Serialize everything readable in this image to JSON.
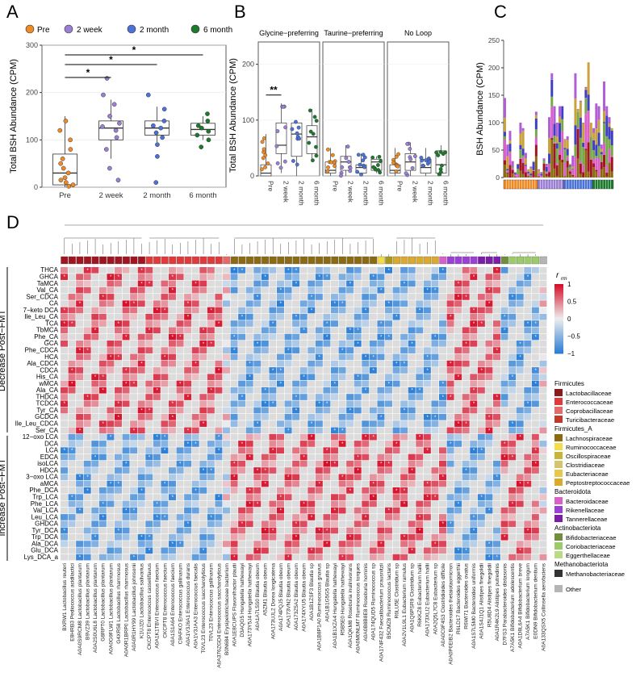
{
  "panel_letters": [
    "A",
    "B",
    "C",
    "D"
  ],
  "colors": {
    "pre": "#f08a24",
    "week2": "#9b7fd4",
    "month2": "#4a72d8",
    "month6": "#1b7a2c",
    "neg": "#2c7fd6",
    "pos": "#d6102a",
    "mid": "#dcdcdc"
  },
  "legend_top": {
    "items": [
      "Pre",
      "2 week",
      "2 month",
      "6 month"
    ]
  },
  "chart_data": [
    {
      "id": "A",
      "type": "box",
      "ylabel": "Total BSH Abundance (CPM)",
      "categories": [
        "Pre",
        "2 week",
        "2 month",
        "6 month"
      ],
      "ylim": [
        0,
        300
      ],
      "yticks": [
        "0",
        "100",
        "200",
        "300"
      ],
      "boxes": [
        {
          "q1": 5,
          "median": 30,
          "q3": 70,
          "whislo": 0,
          "whishi": 150
        },
        {
          "q1": 100,
          "median": 125,
          "q3": 140,
          "whislo": 60,
          "whishi": 185
        },
        {
          "q1": 110,
          "median": 125,
          "q3": 140,
          "whislo": 95,
          "whishi": 170
        },
        {
          "q1": 110,
          "median": 122,
          "q3": 135,
          "whislo": 100,
          "whishi": 150
        }
      ],
      "points": [
        [
          140,
          120,
          100,
          80,
          60,
          50,
          40,
          30,
          20,
          15,
          10,
          5,
          2
        ],
        [
          230,
          195,
          175,
          150,
          135,
          128,
          120,
          105,
          80,
          40,
          15
        ],
        [
          195,
          165,
          140,
          130,
          125,
          115,
          105,
          90,
          65,
          10
        ],
        [
          155,
          140,
          130,
          125,
          118,
          110,
          100,
          85
        ]
      ],
      "significance": [
        {
          "pair": [
            0,
            3
          ],
          "label": "*"
        },
        {
          "pair": [
            0,
            2
          ],
          "label": "*"
        },
        {
          "pair": [
            0,
            1
          ],
          "label": "*"
        }
      ]
    },
    {
      "id": "B",
      "type": "box",
      "ylabel": "Total BSH Abundance (CPM)",
      "facets": [
        "Glycine−preferring",
        "Taurine−preferring",
        "No Loop"
      ],
      "categories": [
        "Pre",
        "2 week",
        "2 month",
        "6 month"
      ],
      "ylim": [
        0,
        240
      ],
      "yticks": [
        "0",
        "100",
        "200"
      ],
      "boxes": [
        [
          {
            "q1": 0,
            "median": 5,
            "q3": 20,
            "whislo": 0,
            "whishi": 75
          },
          {
            "q1": 40,
            "median": 55,
            "q3": 95,
            "whislo": 5,
            "whishi": 130
          },
          {
            "q1": 35,
            "median": 75,
            "q3": 95,
            "whislo": 0,
            "whishi": 100
          },
          {
            "q1": 40,
            "median": 70,
            "q3": 90,
            "whislo": 25,
            "whishi": 120
          }
        ],
        [
          {
            "q1": 5,
            "median": 10,
            "q3": 25,
            "whislo": 0,
            "whishi": 50
          },
          {
            "q1": 10,
            "median": 25,
            "q3": 35,
            "whislo": 0,
            "whishi": 55
          },
          {
            "q1": 5,
            "median": 15,
            "q3": 20,
            "whislo": 0,
            "whishi": 40
          },
          {
            "q1": 10,
            "median": 25,
            "q3": 30,
            "whislo": 5,
            "whishi": 35
          }
        ],
        [
          {
            "q1": 5,
            "median": 10,
            "q3": 20,
            "whislo": 0,
            "whishi": 50
          },
          {
            "q1": 10,
            "median": 25,
            "q3": 40,
            "whislo": 0,
            "whishi": 60
          },
          {
            "q1": 5,
            "median": 15,
            "q3": 30,
            "whislo": 0,
            "whishi": 50
          },
          {
            "q1": 5,
            "median": 20,
            "q3": 45,
            "whislo": 0,
            "whishi": 55
          }
        ]
      ],
      "significance": [
        {
          "facet": 0,
          "pair": [
            0,
            1
          ],
          "label": "**"
        }
      ]
    },
    {
      "id": "C",
      "type": "stacked_bar",
      "ylabel": "BSH Abundance (CPM)",
      "ylim": [
        0,
        250
      ],
      "yticks": [
        "0",
        "50",
        "100",
        "150",
        "200",
        "250"
      ],
      "n_samples": 42,
      "totals": [
        145,
        60,
        85,
        30,
        10,
        25,
        100,
        90,
        45,
        15,
        20,
        30,
        120,
        15,
        10,
        35,
        25,
        110,
        190,
        130,
        100,
        130,
        130,
        70,
        75,
        25,
        40,
        190,
        125,
        140,
        100,
        165,
        210,
        100,
        90,
        135,
        130,
        60,
        175,
        130,
        110,
        90
      ],
      "group_sizes": [
        13,
        10,
        11,
        8
      ],
      "group_colors": [
        "#f08a24",
        "#9b7fd4",
        "#4a72d8",
        "#1b7a2c"
      ],
      "segment_colors": [
        "#8b6a12",
        "#a01521",
        "#d95fc9",
        "#77a84a",
        "#3e3fc4",
        "#c7a33a",
        "#b15ed6"
      ]
    },
    {
      "id": "D",
      "type": "heatmap",
      "legend_title": "r",
      "legend_subscript": "rm",
      "colorbar_ticks": [
        "1",
        "0.5",
        "0",
        "−0.5",
        "−1"
      ],
      "row_groups": [
        "Decrease Post−FMT",
        "Increase Post−FMT"
      ],
      "rows": [
        "THCA",
        "GHCA",
        "TaMCA",
        "Val_CA",
        "Ser_CDCA",
        "CA",
        "7−keto DCA",
        "Ile_Leu_CA",
        "TCA",
        "TbMCA",
        "Phe_CA",
        "GCA",
        "Phe_CDCA",
        "HCA",
        "Ala_CDCA",
        "CDCA",
        "His_CA",
        "wMCA",
        "Ala_CA",
        "THDCA",
        "TCDCA",
        "Tyr_CA",
        "GCDCA",
        "Ile_Leu_CDCA",
        "Ser_CA",
        "12−oxo LCA",
        "DCA",
        "LCA",
        "EDCA",
        "isoLCA",
        "HDCA",
        "3−oxo LCA",
        "aMCA",
        "Phe_DCA",
        "Trp_LCA",
        "Phe_LCA",
        "Val_LCA",
        "Leu_LCA",
        "GHDCA",
        "Tyr_DCA",
        "Trp_DCA",
        "Ala_DCA",
        "Glu_DCA",
        "Lys_DCA_a"
      ],
      "columns": [
        "BXRW1 Lactobacillus reuteri",
        "E8HRB3 Pediococcus acidilactici",
        "A0A0S9RCM8 Lactobacillus plantarum",
        "B9VZ39 Lactobacillus plantarum",
        "A0A2S0U6L8 Lactobacillus plantarum",
        "G8RPT0 Lactobacillus plantarum",
        "A0A0G9FLW1 Lactobacillus plantarum",
        "G4XR58 Lactobacillus rhamnosus",
        "A0A0R1BRP0 Lactobacillus rhamnosus",
        "A0A0R1HY99 Lactobacillus johnsonii",
        "K1UJZ0 Lactobacillus salivarius",
        "CKCPT8 Enterococcus casseliflavus",
        "A0A1K1TBVI Enterococcus faecium",
        "CKCPT8 Enterococcus faecium",
        "A0A1S1A64 Enterococcus faecium",
        "C9AFKO Enterococcus gallinarum",
        "A0A1V3J6A1 Enterococcus durans",
        "A0A1V3JAA3 Enterococcus faecalis",
        "T0VL23 Enterococcus saccharolyticus",
        "T0VL23 Enterococcus gallinarum",
        "A0A376ZGD4 Enterococcus saccharolyticus",
        "B0N684 Erysipelotrichaceae bacterium",
        "A0A1E8CUPS Flavonifractor plautii",
        "D3AQG5 Hungatella hathewayi",
        "A0A173Y5J4 Hungatella hathewayi",
        "A0A1A7L5S0 Blautia obeum",
        "A5ZM1 Blautia obeum",
        "A0A173UJL2 Dorea longicatena",
        "A0A174PQJ5 Blautia obeum",
        "A0A173VN2 Blautia obeum",
        "A0A173Z5A2 Blautia obeum",
        "A0A174XYU5 Blautia obeum",
        "A0A1B1ZSF3 Blautia sp",
        "A0A1B8P1A0 Ruminococcus gnavus",
        "A0A1B1G5G5 Blautia sp",
        "A0A1B1XZA4 Hungatella hathewayi",
        "R5B5E0 Hungatella hathewayi",
        "A0A1QKM8 Roseburia inulinivorans",
        "A0A0M0NLM7 Ruminococcus torques",
        "A0A0B8B8E8 Roseburia hominis",
        "A0A174QUD5 Ruminococcus sp",
        "A0A174F432 Faecalibacterium prausnitzii",
        "B5CMZ8 Ruminococcus lactaris",
        "R6LU5E Clostridium sp",
        "A0A2V1L9L1 Eubacterium ramulus",
        "A0A1Q6PSR9 Clostridium sp",
        "R6KKZ8 Eubacterium hallii",
        "A0A173XLI2 Eubacterium hallii",
        "A0A2Q5L7C8 Eubacterium sp",
        "A0A0C9F4S3 Clostridioides difficile",
        "A0A0P0EIB2 Bacteroides thetaiotaomicron",
        "R6LD17 Bacteroides eggerthii",
        "R6WI71 Bacteroides ovatus",
        "A0A1S7L5M0 Bacteroides uniformis",
        "A0A1S4J1Q1 Alistipes finegoldii",
        "R5U8D4 Alistipes finegoldii",
        "A0A1R4K2L9 Alistipes putredinis",
        "D7FS3 Parabacteroides distasonis",
        "A7A5K1 Bifidobacterium adolescentis",
        "A0A1D8L6A4 Bifidobacterium breve",
        "A7A5K1 Bifidobacterium longum",
        "E0DN9 Bifidobacterium dentium",
        "A0A133QSX5 Collinsella aerofaciens"
      ],
      "column_family_colors": [
        "#a01521",
        "#e03a3a",
        "#e56b6b",
        "#8b6a12",
        "#f2dc4a",
        "#a89a1e",
        "#d9aa2b",
        "#d95fc9",
        "#9b3fd6",
        "#7a1ea8",
        "#6f8f3a",
        "#9ccc6a",
        "#b5b5b5"
      ],
      "family_legend": {
        "phyla": [
          {
            "name": "Firmicutes",
            "families": [
              [
                "Lactobacillaceae",
                "#8b1a1a"
              ],
              [
                "Enterococcaceae",
                "#e03a3a"
              ],
              [
                "Coprobacillaceae",
                "#e56b6b"
              ],
              [
                "Turicibacteraceae",
                "#c0392b"
              ]
            ]
          },
          {
            "name": "Firmicutes_A",
            "families": [
              [
                "Lachnospiraceae",
                "#8b6a12"
              ],
              [
                "Ruminococcaceae",
                "#f2dc4a"
              ],
              [
                "Oscillospiraceae",
                "#c8b43a"
              ],
              [
                "Clostridiaceae",
                "#d6c46b"
              ],
              [
                "Eubacteriaceae",
                "#e8c84a"
              ],
              [
                "Peptostreptococcaceae",
                "#d9aa2b"
              ]
            ]
          },
          {
            "name": "Bacteroidota",
            "families": [
              [
                "Bacteroidaceae",
                "#d95fc9"
              ],
              [
                "Rikenellaceae",
                "#9b3fd6"
              ],
              [
                "Tannerellaceae",
                "#7a1ea8"
              ]
            ]
          },
          {
            "name": "Actinobacteriota",
            "families": [
              [
                "Bifidobacteriaceae",
                "#6f8f3a"
              ],
              [
                "Coriobacteriaceae",
                "#9ccc6a"
              ],
              [
                "Eggerthellaceae",
                "#b8dc86"
              ]
            ]
          },
          {
            "name": "Methanobacteriota",
            "families": [
              [
                "Methanobacteriaceae",
                "#333333"
              ]
            ]
          },
          {
            "name": "",
            "families": [
              [
                "Other",
                "#b5b5b5"
              ]
            ]
          }
        ]
      }
    }
  ]
}
